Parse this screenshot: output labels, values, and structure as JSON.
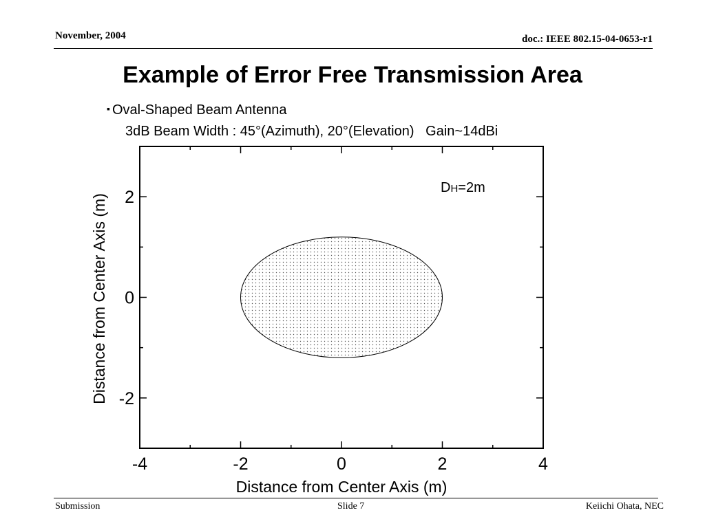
{
  "header": {
    "date": "November, 2004",
    "doc": "doc.: IEEE 802.15-04-0653-r1"
  },
  "slide": {
    "title": "Example of Error Free Transmission Area",
    "bullet_marker": "▪",
    "bullet": "Oval-Shaped Beam Antenna",
    "sub": "3dB Beam Width : 45°(Azimuth), 20°(Elevation)   Gain~14dBi"
  },
  "chart_data": {
    "type": "area",
    "title": "",
    "xlabel": "Distance from Center Axis (m)",
    "ylabel": "Distance from Center Axis (m)",
    "xlim": [
      -4,
      4
    ],
    "ylim": [
      -3,
      3
    ],
    "x_ticks": [
      -4,
      -2,
      0,
      2,
      4
    ],
    "y_ticks": [
      -2,
      0,
      2
    ],
    "minor_step": 1,
    "grid": false,
    "annotation": {
      "prefix": "D",
      "subscript": "H",
      "suffix": "=2m"
    },
    "series": [
      {
        "shape": "ellipse",
        "center": [
          0,
          0
        ],
        "semi_axis_x": 2.0,
        "semi_axis_y": 1.2,
        "fill": "stippled"
      }
    ]
  },
  "footer": {
    "left": "Submission",
    "center": "Slide 7",
    "right": "Keiichi Ohata, NEC"
  }
}
